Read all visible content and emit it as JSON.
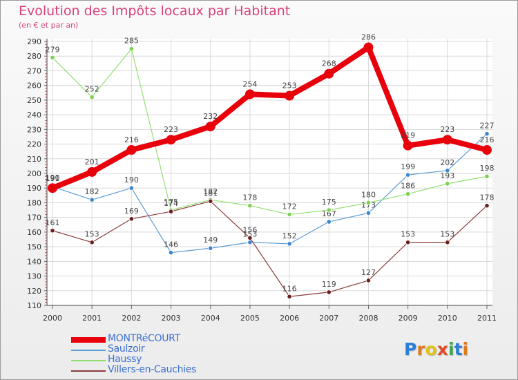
{
  "title": "Evolution des Impôts locaux par Habitant",
  "subtitle": "(en € et par an)",
  "logo": {
    "text": "Proxiti",
    "colors": [
      "#2b7fd6",
      "#e07a1f",
      "#e0c21a",
      "#e04a2a",
      "#3aa648",
      "#2b7fd6",
      "#e07a1f"
    ]
  },
  "chart_data": {
    "type": "line",
    "title": "Evolution des Impôts locaux par Habitant",
    "subtitle": "(en € et par an)",
    "categories": [
      "2000",
      "2001",
      "2002",
      "2003",
      "2004",
      "2005",
      "2006",
      "2007",
      "2008",
      "2009",
      "2010",
      "2011"
    ],
    "ylim": [
      110,
      290
    ],
    "yticks": [
      110,
      120,
      130,
      140,
      150,
      160,
      170,
      180,
      190,
      200,
      210,
      220,
      230,
      240,
      250,
      260,
      270,
      280,
      290
    ],
    "series": [
      {
        "name": "MONTRéCOURT",
        "color": "#e8000b",
        "width": 8,
        "marker": 7,
        "values": [
          190,
          201,
          216,
          223,
          232,
          254,
          253,
          268,
          286,
          219,
          223,
          216
        ]
      },
      {
        "name": "Saulzoir",
        "color": "#5b9bd5",
        "width": 1.2,
        "marker": 3.2,
        "marker_color": "#3a86d4",
        "values": [
          191,
          182,
          190,
          146,
          149,
          153,
          152,
          167,
          173,
          199,
          202,
          227
        ]
      },
      {
        "name": "Haussy",
        "color": "#90e070",
        "width": 1.2,
        "marker": 3.2,
        "marker_color": "#7bd04f",
        "values": [
          279,
          252,
          285,
          175,
          182,
          178,
          172,
          175,
          180,
          186,
          193,
          198
        ]
      },
      {
        "name": "Villers-en-Cauchies",
        "color": "#8a3a3a",
        "width": 1.2,
        "marker": 3.2,
        "marker_color": "#6b1c1c",
        "values": [
          161,
          153,
          169,
          174,
          181,
          156,
          116,
          119,
          127,
          153,
          153,
          178
        ]
      }
    ]
  }
}
